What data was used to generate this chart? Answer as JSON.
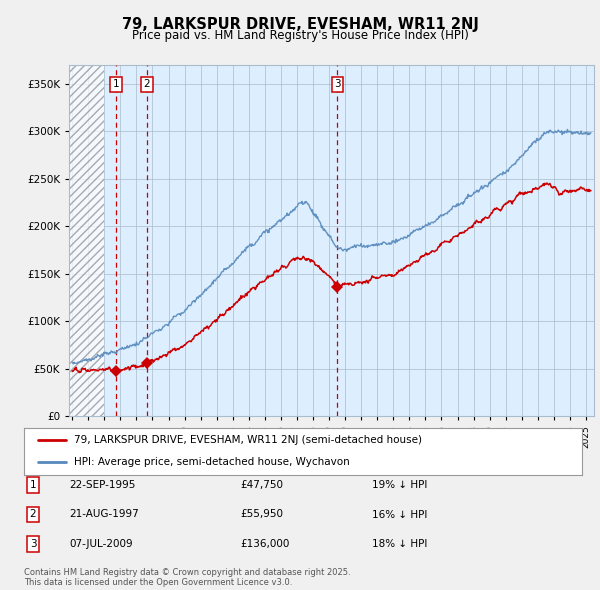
{
  "title_line1": "79, LARKSPUR DRIVE, EVESHAM, WR11 2NJ",
  "title_line2": "Price paid vs. HM Land Registry's House Price Index (HPI)",
  "sale_dates_numeric": [
    1995.73,
    1997.64,
    2009.52
  ],
  "sale_prices": [
    47750,
    55950,
    136000
  ],
  "sale_labels": [
    "1",
    "2",
    "3"
  ],
  "legend_line1": "79, LARKSPUR DRIVE, EVESHAM, WR11 2NJ (semi-detached house)",
  "legend_line2": "HPI: Average price, semi-detached house, Wychavon",
  "table_rows": [
    [
      "1",
      "22-SEP-1995",
      "£47,750",
      "19% ↓ HPI"
    ],
    [
      "2",
      "21-AUG-1997",
      "£55,950",
      "16% ↓ HPI"
    ],
    [
      "3",
      "07-JUL-2009",
      "£136,000",
      "18% ↓ HPI"
    ]
  ],
  "footer_text": "Contains HM Land Registry data © Crown copyright and database right 2025.\nThis data is licensed under the Open Government Licence v3.0.",
  "red_color": "#cc0000",
  "blue_color": "#5588bb",
  "plot_bg_color": "#ddeeff",
  "fig_bg_color": "#f0f0f0",
  "yticks": [
    0,
    50000,
    100000,
    150000,
    200000,
    250000,
    300000,
    350000
  ],
  "ytick_labels": [
    "£0",
    "£50K",
    "£100K",
    "£150K",
    "£200K",
    "£250K",
    "£300K",
    "£350K"
  ],
  "xmin": 1992.8,
  "xmax": 2025.5,
  "ymin": 0,
  "ymax": 370000
}
